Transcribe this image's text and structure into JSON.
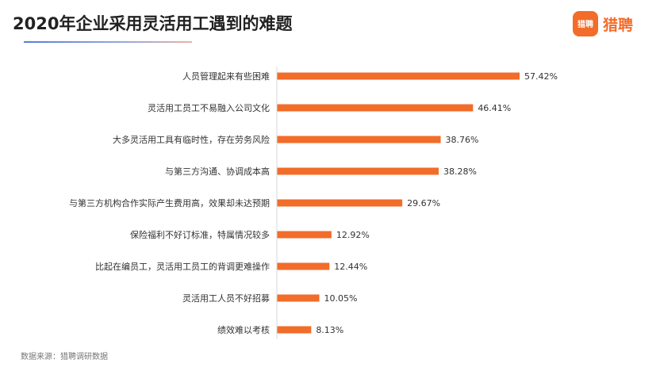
{
  "header": {
    "title": "2020年企业采用灵活用工遇到的难题",
    "logo_text": "猎聘",
    "logo_badge_text": "猎聘"
  },
  "footer": {
    "source": "数据来源：猎聘调研数据"
  },
  "colors": {
    "bar": "#f26c2a",
    "brand": "#f26c2a"
  },
  "chart_data": {
    "type": "bar",
    "orientation": "horizontal",
    "title": "2020年企业采用灵活用工遇到的难题",
    "xlabel": "",
    "ylabel": "",
    "xlim": [
      0,
      57.42
    ],
    "grid": false,
    "categories": [
      "人员管理起来有些困难",
      "灵活用工员工不易融入公司文化",
      "大多灵活用工具有临时性，存在劳务风险",
      "与第三方沟通、协调成本高",
      "与第三方机构合作实际产生费用高，效果却未达预期",
      "保险福利不好订标准，特属情况较多",
      "比起在编员工，灵活用工员工的背调更难操作",
      "灵活用工人员不好招募",
      "绩效难以考核"
    ],
    "values": [
      57.42,
      46.41,
      38.76,
      38.28,
      29.67,
      12.92,
      12.44,
      10.05,
      8.13
    ],
    "value_labels": [
      "57.42%",
      "46.41%",
      "38.76%",
      "38.28%",
      "29.67%",
      "12.92%",
      "12.44%",
      "10.05%",
      "8.13%"
    ]
  }
}
